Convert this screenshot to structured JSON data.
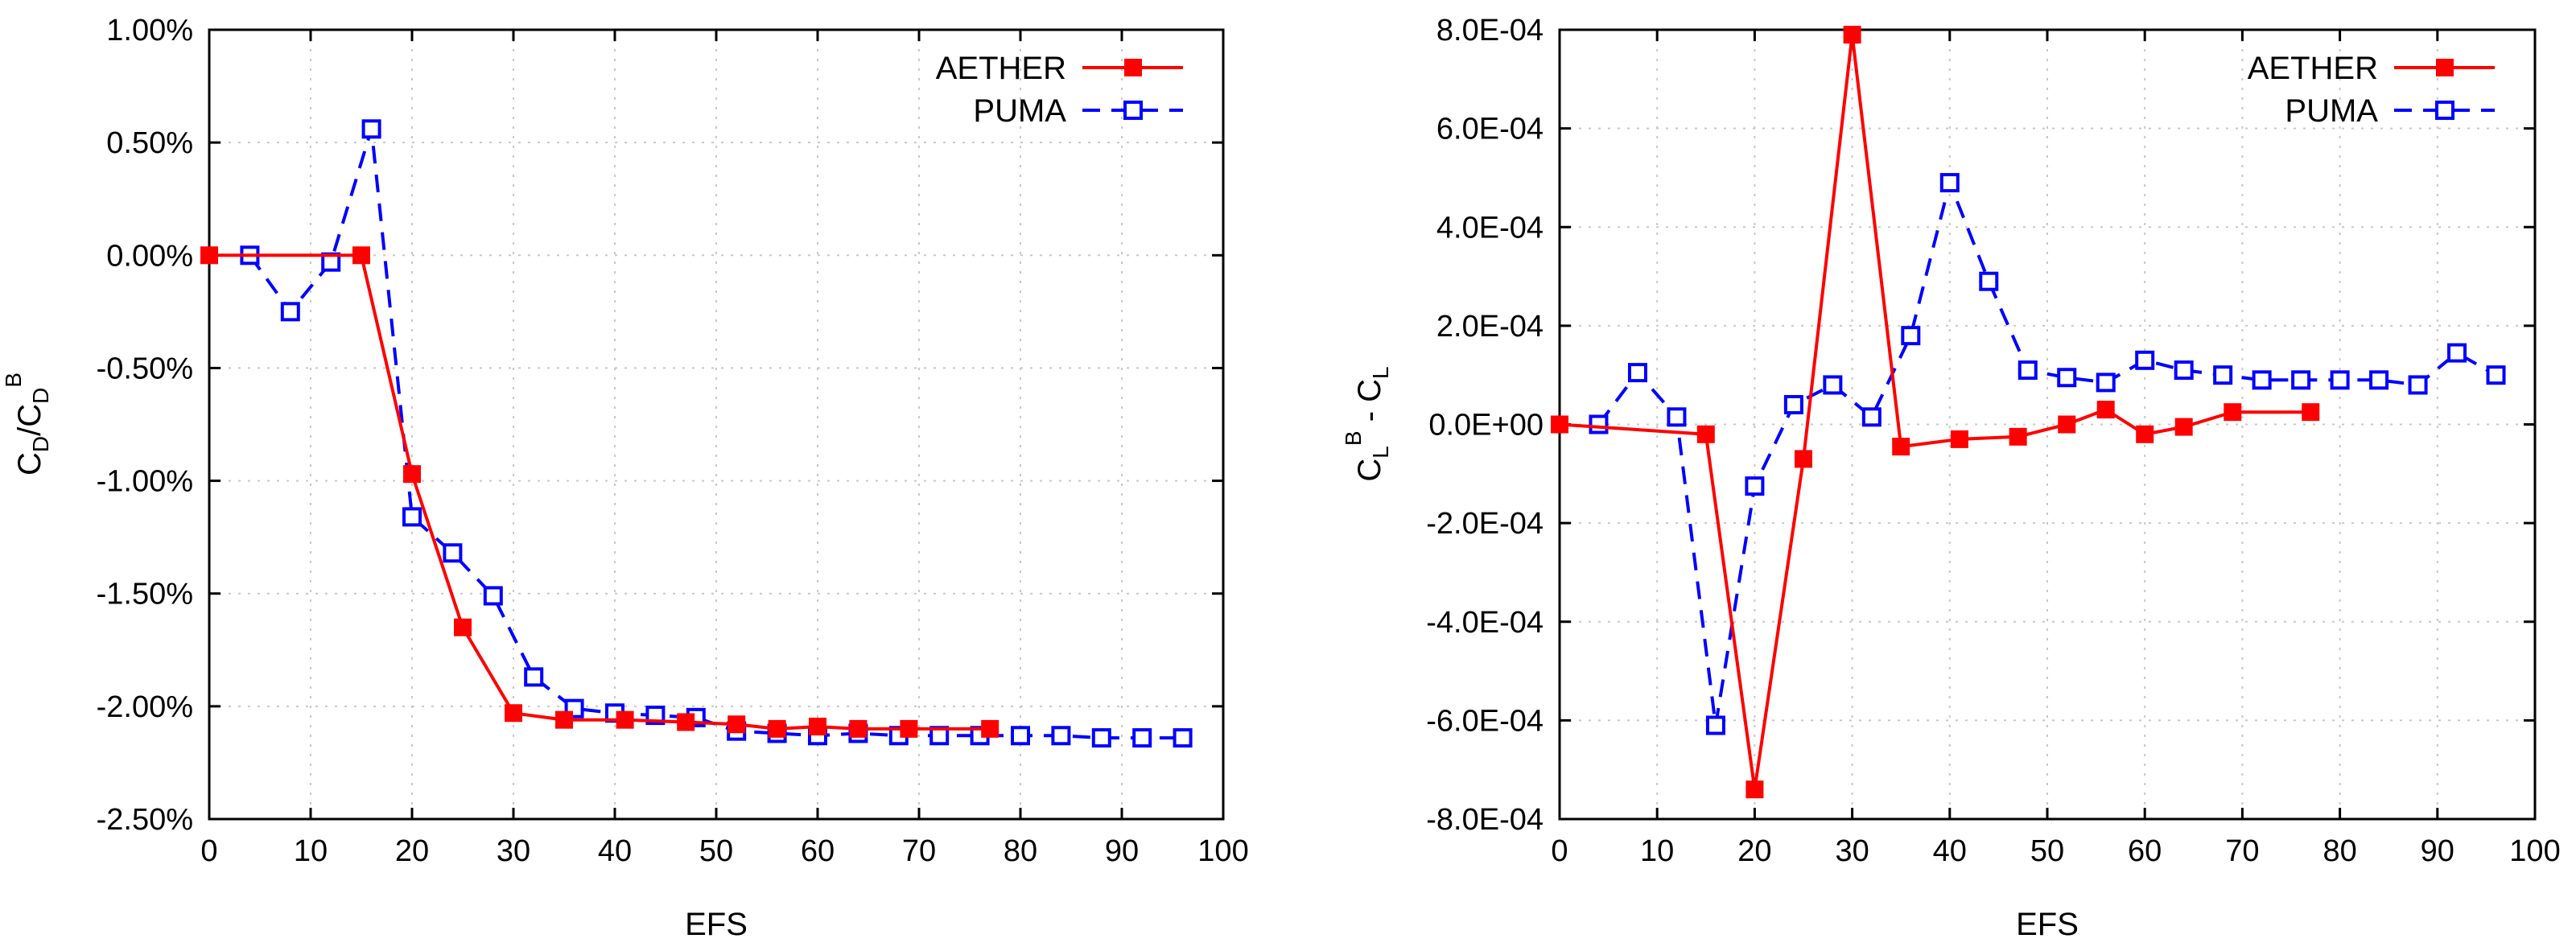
{
  "chart_data": [
    {
      "type": "line",
      "id": "left",
      "xlabel": "EFS",
      "ylabel": {
        "base": "C",
        "sub1": "D",
        "slash": "/C",
        "sub2": "D",
        "sup": "B"
      },
      "xlim": [
        0,
        100
      ],
      "ylim": [
        -2.5,
        1.0
      ],
      "xticks": [
        0,
        10,
        20,
        30,
        40,
        50,
        60,
        70,
        80,
        90,
        100
      ],
      "xtick_labels": [
        "0",
        "10",
        "20",
        "30",
        "40",
        "50",
        "60",
        "70",
        "80",
        "90",
        "100"
      ],
      "yticks": [
        -2.5,
        -2.0,
        -1.5,
        -1.0,
        -0.5,
        0.0,
        0.5,
        1.0
      ],
      "ytick_labels": [
        "-2.50%",
        "-2.00%",
        "-1.50%",
        "-1.00%",
        "-0.50%",
        "0.00%",
        "0.50%",
        "1.00%"
      ],
      "grid": true,
      "legend_position": "top-right",
      "series": [
        {
          "name": "AETHER",
          "color": "#ff0000",
          "marker": "filled-square",
          "dash": "solid",
          "x": [
            0,
            15,
            20,
            25,
            30,
            35,
            41,
            47,
            52,
            56,
            60,
            64,
            69,
            77
          ],
          "y": [
            0.0,
            0.0,
            -0.97,
            -1.65,
            -2.03,
            -2.06,
            -2.06,
            -2.07,
            -2.08,
            -2.1,
            -2.09,
            -2.1,
            -2.1,
            -2.1
          ]
        },
        {
          "name": "PUMA",
          "color": "#0000ff",
          "marker": "open-square",
          "dash": "dashed",
          "x": [
            4,
            8,
            12,
            16,
            20,
            24,
            28,
            32,
            36,
            40,
            44,
            48,
            52,
            56,
            60,
            64,
            68,
            72,
            76,
            80,
            84,
            88,
            92,
            96
          ],
          "y": [
            0.0,
            -0.25,
            -0.03,
            0.56,
            -1.16,
            -1.32,
            -1.51,
            -1.87,
            -2.01,
            -2.03,
            -2.04,
            -2.05,
            -2.11,
            -2.12,
            -2.13,
            -2.12,
            -2.13,
            -2.13,
            -2.13,
            -2.13,
            -2.13,
            -2.14,
            -2.14,
            -2.14
          ]
        }
      ]
    },
    {
      "type": "line",
      "id": "right",
      "xlabel": "EFS",
      "ylabel": {
        "base1": "C",
        "sub1": "L",
        "sup1": "B",
        "mid": " - C",
        "sub2": "L"
      },
      "xlim": [
        0,
        100
      ],
      "ylim": [
        -0.0008,
        0.0008
      ],
      "xticks": [
        0,
        10,
        20,
        30,
        40,
        50,
        60,
        70,
        80,
        90,
        100
      ],
      "xtick_labels": [
        "0",
        "10",
        "20",
        "30",
        "40",
        "50",
        "60",
        "70",
        "80",
        "90",
        "100"
      ],
      "yticks": [
        -0.0008,
        -0.0006,
        -0.0004,
        -0.0002,
        0.0,
        0.0002,
        0.0004,
        0.0006,
        0.0008
      ],
      "ytick_labels": [
        "-8.0E-04",
        "-6.0E-04",
        "-4.0E-04",
        "-2.0E-04",
        "0.0E+00",
        "2.0E-04",
        "4.0E-04",
        "6.0E-04",
        "8.0E-04"
      ],
      "grid": true,
      "legend_position": "top-right",
      "series": [
        {
          "name": "AETHER",
          "color": "#ff0000",
          "marker": "filled-square",
          "dash": "solid",
          "x": [
            0,
            15,
            20,
            25,
            30,
            35,
            41,
            47,
            52,
            56,
            60,
            64,
            69,
            77
          ],
          "y": [
            0.0,
            -2e-05,
            -0.00074,
            -7e-05,
            0.00079,
            -4.5e-05,
            -3e-05,
            -2.5e-05,
            0.0,
            3e-05,
            -2e-05,
            -5e-06,
            2.5e-05,
            2.5e-05
          ]
        },
        {
          "name": "PUMA",
          "color": "#0000ff",
          "marker": "open-square",
          "dash": "dashed",
          "x": [
            4,
            8,
            12,
            16,
            20,
            24,
            28,
            32,
            36,
            40,
            44,
            48,
            52,
            56,
            60,
            64,
            68,
            72,
            76,
            80,
            84,
            88,
            92,
            96
          ],
          "y": [
            0.0,
            0.000105,
            1.5e-05,
            -0.00061,
            -0.000125,
            4e-05,
            8e-05,
            1.5e-05,
            0.00018,
            0.00049,
            0.00029,
            0.00011,
            9.5e-05,
            8.5e-05,
            0.00013,
            0.00011,
            0.0001,
            9e-05,
            9e-05,
            9e-05,
            9e-05,
            8e-05,
            0.000145,
            0.0001
          ]
        }
      ]
    }
  ]
}
